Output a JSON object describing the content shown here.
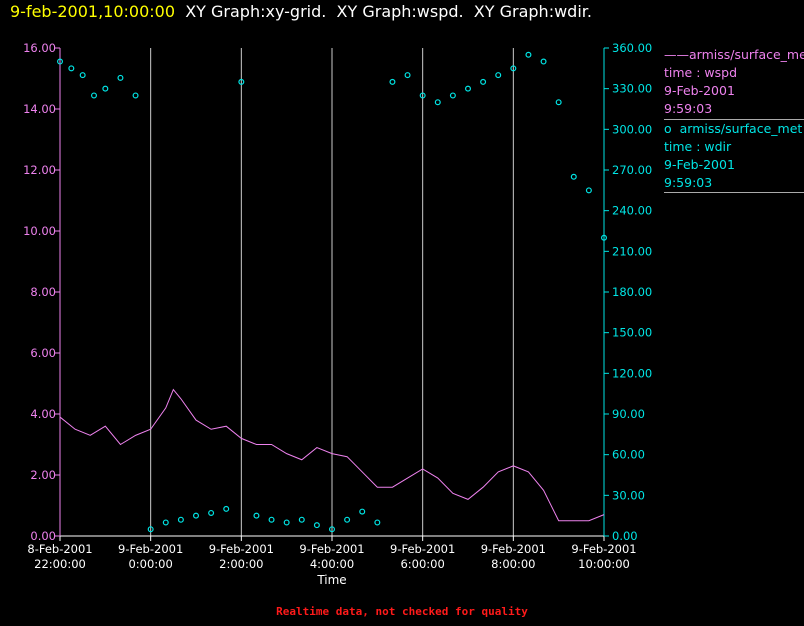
{
  "title": {
    "timestamp": "9-feb-2001,10:00:00",
    "graph_1": "XY Graph:xy-grid.",
    "graph_2": "XY Graph:wspd.",
    "graph_3": "XY Graph:wdir."
  },
  "legend": [
    {
      "symbol": "——",
      "series": "armiss/surface_met",
      "var": "time : wspd",
      "date": "9-Feb-2001",
      "time": "9:59:03"
    },
    {
      "symbol": "o",
      "series": "armiss/surface_met",
      "var": "time : wdir",
      "date": "9-Feb-2001",
      "time": "9:59:03"
    }
  ],
  "footer_note": "Realtime data, not checked for quality",
  "colors": {
    "wspd": "#ee82ee",
    "wdir": "#00e5e5",
    "grid": "#cccccc",
    "axis_left": "#ee82ee",
    "axis_right": "#00e5e5",
    "timestamp": "#ffff00"
  },
  "chart_data": {
    "type": "line",
    "xlabel": "Time",
    "x_range": [
      "2001-02-08 22:00:00",
      "2001-02-09 10:00:00"
    ],
    "x_ticks": [
      {
        "date": "8-Feb-2001",
        "time": "22:00:00"
      },
      {
        "date": "9-Feb-2001",
        "time": "0:00:00"
      },
      {
        "date": "9-Feb-2001",
        "time": "2:00:00"
      },
      {
        "date": "9-Feb-2001",
        "time": "4:00:00"
      },
      {
        "date": "9-Feb-2001",
        "time": "6:00:00"
      },
      {
        "date": "9-Feb-2001",
        "time": "8:00:00"
      },
      {
        "date": "9-Feb-2001",
        "time": "10:00:00"
      }
    ],
    "y_left": {
      "ylim": [
        0,
        16
      ],
      "ticks": [
        "0.00",
        "2.00",
        "4.00",
        "6.00",
        "8.00",
        "10.00",
        "12.00",
        "14.00",
        "16.00"
      ]
    },
    "y_right": {
      "ylim": [
        0,
        360
      ],
      "ticks": [
        "0.00",
        "30.00",
        "60.00",
        "90.00",
        "120.00",
        "150.00",
        "180.00",
        "210.00",
        "240.00",
        "270.00",
        "300.00",
        "330.00",
        "360.00"
      ]
    },
    "grid": "vertical lines at each x tick",
    "series": [
      {
        "var": "wspd",
        "axis": "left",
        "style": "line",
        "points": [
          [
            "2001-02-08 22:00",
            3.9
          ],
          [
            "2001-02-08 22:20",
            3.5
          ],
          [
            "2001-02-08 22:40",
            3.3
          ],
          [
            "2001-02-08 23:00",
            3.6
          ],
          [
            "2001-02-08 23:20",
            3.0
          ],
          [
            "2001-02-08 23:40",
            3.3
          ],
          [
            "2001-02-09 00:00",
            3.5
          ],
          [
            "2001-02-09 00:20",
            4.2
          ],
          [
            "2001-02-09 00:30",
            4.8
          ],
          [
            "2001-02-09 00:40",
            4.5
          ],
          [
            "2001-02-09 01:00",
            3.8
          ],
          [
            "2001-02-09 01:20",
            3.5
          ],
          [
            "2001-02-09 01:40",
            3.6
          ],
          [
            "2001-02-09 02:00",
            3.2
          ],
          [
            "2001-02-09 02:20",
            3.0
          ],
          [
            "2001-02-09 02:40",
            3.0
          ],
          [
            "2001-02-09 03:00",
            2.7
          ],
          [
            "2001-02-09 03:20",
            2.5
          ],
          [
            "2001-02-09 03:40",
            2.9
          ],
          [
            "2001-02-09 04:00",
            2.7
          ],
          [
            "2001-02-09 04:20",
            2.6
          ],
          [
            "2001-02-09 04:40",
            2.1
          ],
          [
            "2001-02-09 05:00",
            1.6
          ],
          [
            "2001-02-09 05:20",
            1.6
          ],
          [
            "2001-02-09 05:40",
            1.9
          ],
          [
            "2001-02-09 06:00",
            2.2
          ],
          [
            "2001-02-09 06:20",
            1.9
          ],
          [
            "2001-02-09 06:40",
            1.4
          ],
          [
            "2001-02-09 07:00",
            1.2
          ],
          [
            "2001-02-09 07:20",
            1.6
          ],
          [
            "2001-02-09 07:40",
            2.1
          ],
          [
            "2001-02-09 08:00",
            2.3
          ],
          [
            "2001-02-09 08:20",
            2.1
          ],
          [
            "2001-02-09 08:40",
            1.5
          ],
          [
            "2001-02-09 09:00",
            0.5
          ],
          [
            "2001-02-09 09:20",
            0.5
          ],
          [
            "2001-02-09 09:40",
            0.5
          ],
          [
            "2001-02-09 10:00",
            0.7
          ]
        ]
      },
      {
        "var": "wdir",
        "axis": "right",
        "style": "scatter",
        "points": [
          [
            "2001-02-08 22:00",
            350
          ],
          [
            "2001-02-08 22:15",
            345
          ],
          [
            "2001-02-08 22:30",
            340
          ],
          [
            "2001-02-08 22:45",
            325
          ],
          [
            "2001-02-08 23:00",
            330
          ],
          [
            "2001-02-08 23:20",
            338
          ],
          [
            "2001-02-08 23:40",
            325
          ],
          [
            "2001-02-09 00:00",
            5
          ],
          [
            "2001-02-09 00:20",
            10
          ],
          [
            "2001-02-09 00:40",
            12
          ],
          [
            "2001-02-09 01:00",
            15
          ],
          [
            "2001-02-09 01:20",
            17
          ],
          [
            "2001-02-09 01:40",
            20
          ],
          [
            "2001-02-09 02:00",
            335
          ],
          [
            "2001-02-09 02:20",
            15
          ],
          [
            "2001-02-09 02:40",
            12
          ],
          [
            "2001-02-09 03:00",
            10
          ],
          [
            "2001-02-09 03:20",
            12
          ],
          [
            "2001-02-09 03:40",
            8
          ],
          [
            "2001-02-09 04:00",
            5
          ],
          [
            "2001-02-09 04:20",
            12
          ],
          [
            "2001-02-09 04:40",
            18
          ],
          [
            "2001-02-09 05:00",
            10
          ],
          [
            "2001-02-09 05:20",
            335
          ],
          [
            "2001-02-09 05:40",
            340
          ],
          [
            "2001-02-09 06:00",
            325
          ],
          [
            "2001-02-09 06:20",
            320
          ],
          [
            "2001-02-09 06:40",
            325
          ],
          [
            "2001-02-09 07:00",
            330
          ],
          [
            "2001-02-09 07:20",
            335
          ],
          [
            "2001-02-09 07:40",
            340
          ],
          [
            "2001-02-09 08:00",
            345
          ],
          [
            "2001-02-09 08:20",
            355
          ],
          [
            "2001-02-09 08:40",
            350
          ],
          [
            "2001-02-09 09:00",
            320
          ],
          [
            "2001-02-09 09:20",
            265
          ],
          [
            "2001-02-09 09:40",
            255
          ],
          [
            "2001-02-09 10:00",
            220
          ]
        ]
      }
    ]
  }
}
